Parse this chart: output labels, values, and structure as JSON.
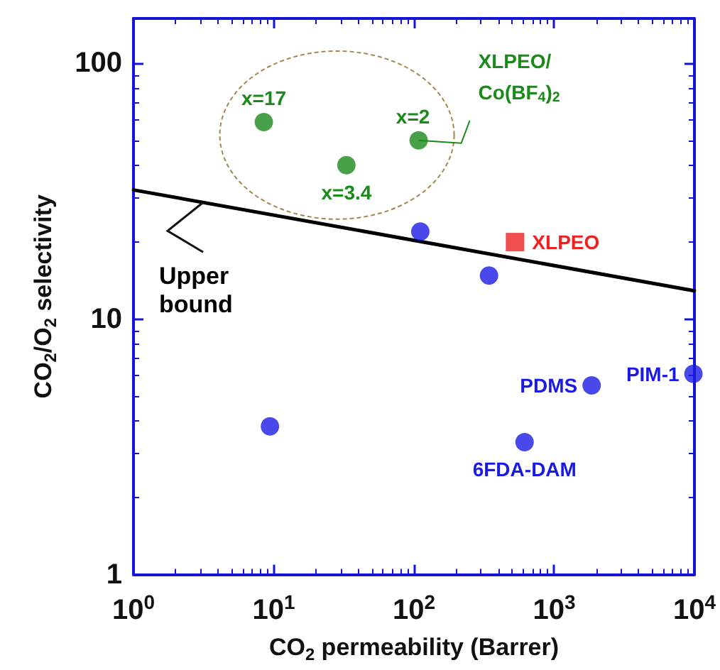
{
  "chart_data": {
    "type": "scatter",
    "xlabel": "CO$_{2}$ permeability (Barrer)",
    "ylabel": "CO$_{2}$/O$_{2}$ selectivity",
    "log": "xy",
    "xlim": [
      1,
      10000
    ],
    "xticks": [
      {
        "value": 1,
        "label": "10$^{0}$"
      },
      {
        "value": 10,
        "label": "10$^{1}$"
      },
      {
        "value": 100,
        "label": "10$^{2}$"
      },
      {
        "value": 1000,
        "label": "10$^{3}$"
      },
      {
        "value": 10000,
        "label": "10$^{4}$"
      }
    ],
    "ylim": [
      1,
      150
    ],
    "yticks": [
      1,
      10,
      100
    ],
    "grid": false,
    "legend": false,
    "series": [
      {
        "name": "XLPEO/Co(BF$_{4}$)$_{2}$",
        "color": "#1a8a1a",
        "marker": "circle",
        "x": [
          8.5,
          33,
          108
        ],
        "values": [
          59,
          40,
          50
        ]
      },
      {
        "name": "XLPEO",
        "color": "#ee2222",
        "marker": "square",
        "x": [
          526
        ],
        "values": [
          20
        ]
      },
      {
        "color": "#1a1ae6",
        "marker": "circle",
        "x": [
          111,
          343,
          9.4,
          615,
          1850,
          9840
        ],
        "values": [
          22,
          14.8,
          3.8,
          3.3,
          5.5,
          6.1
        ]
      },
      {
        "name": "Upper bound",
        "type": "line",
        "color": "#000000",
        "marker": "none",
        "line_style": "solid",
        "x": [
          1,
          10000
        ],
        "values": [
          32,
          12.9
        ]
      }
    ],
    "annotations": [
      {
        "text": "x=17",
        "x": 8.5,
        "y": 59
      },
      {
        "text": "x=3.4",
        "x": 33,
        "y": 40
      },
      {
        "text": "x=2",
        "x": 108,
        "y": 50
      },
      {
        "text": "6FDA-DAM",
        "x": 615,
        "y": 3.3
      },
      {
        "text": "PDMS",
        "x": 1850,
        "y": 5.5
      },
      {
        "text": "PIM-1",
        "x": 9840,
        "y": 6.1
      }
    ]
  }
}
